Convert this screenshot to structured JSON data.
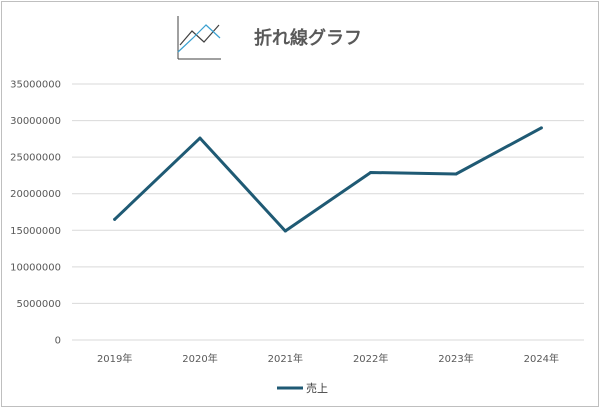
{
  "chart_data": {
    "type": "line",
    "title": "折れ線グラフ",
    "categories": [
      "2019年",
      "2020年",
      "2021年",
      "2022年",
      "2023年",
      "2024年"
    ],
    "series": [
      {
        "name": "売上",
        "values": [
          16500000,
          27600000,
          14900000,
          22900000,
          22700000,
          29000000
        ],
        "color": "#1f5a74"
      }
    ],
    "ylim": [
      0,
      35000000
    ],
    "yticks": [
      "35000000",
      "30000000",
      "25000000",
      "20000000",
      "15000000",
      "10000000",
      "5000000",
      "0"
    ],
    "grid": true,
    "legend": "bottom",
    "icon": "line-chart-icon",
    "colors": {
      "grid": "#d9d9d9",
      "axis_text": "#595959",
      "icon_line_1": "#404040",
      "icon_line_2": "#3aa0d0"
    }
  }
}
